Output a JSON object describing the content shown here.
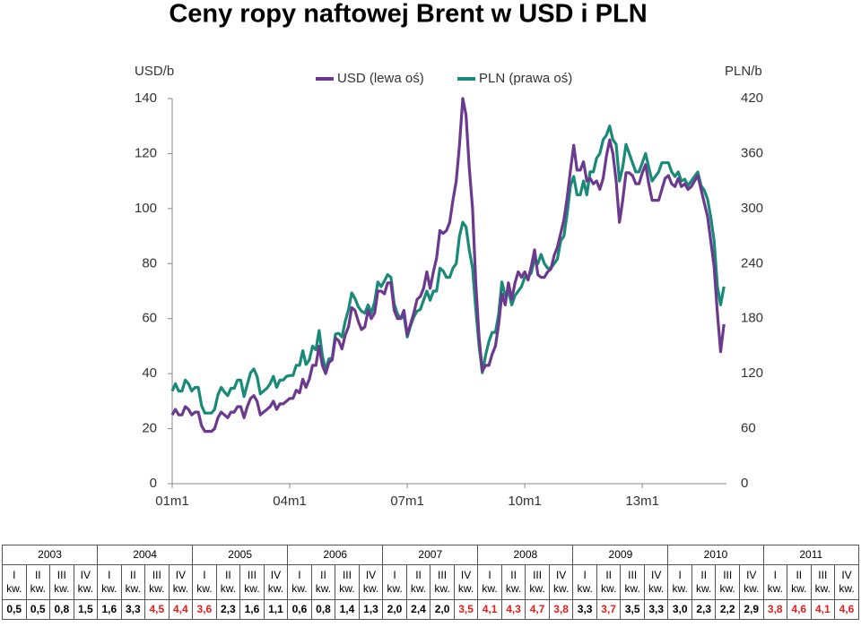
{
  "chart_data": {
    "type": "line",
    "title": "Ceny ropy naftowej Brent w USD i PLN",
    "y_label": "USD/b",
    "y2_label": "PLN/b",
    "categories": [
      "01m1",
      null,
      null,
      null,
      null,
      null,
      null,
      null,
      null,
      null,
      null,
      null,
      null,
      null,
      null,
      null,
      null,
      null,
      null,
      null,
      null,
      null,
      null,
      null,
      null,
      null,
      null,
      null,
      null,
      null,
      null,
      null,
      null,
      null,
      null,
      null,
      "04m1",
      null,
      null,
      null,
      null,
      null,
      null,
      null,
      null,
      null,
      null,
      null,
      null,
      null,
      null,
      null,
      null,
      null,
      null,
      null,
      null,
      null,
      null,
      null,
      null,
      null,
      null,
      null,
      null,
      null,
      null,
      null,
      null,
      null,
      null,
      null,
      "07m1",
      null,
      null,
      null,
      null,
      null,
      null,
      null,
      null,
      null,
      null,
      null,
      null,
      null,
      null,
      null,
      null,
      null,
      null,
      null,
      null,
      null,
      null,
      null,
      null,
      null,
      null,
      null,
      null,
      null,
      null,
      null,
      null,
      null,
      null,
      null,
      "10m1",
      null,
      null,
      null,
      null,
      null,
      null,
      null,
      null,
      null,
      null,
      null,
      null,
      null,
      null,
      null,
      null,
      null,
      null,
      null,
      null,
      null,
      null,
      null,
      null,
      null,
      null,
      null,
      null,
      null,
      null,
      null,
      null,
      null,
      null,
      null,
      "13m1",
      null,
      null,
      null,
      null,
      null,
      null,
      null,
      null,
      null,
      null,
      null,
      null,
      null,
      null,
      null,
      null,
      null,
      null,
      null,
      null,
      null,
      null,
      null,
      null,
      null
    ],
    "series": [
      {
        "name": "USD (lewa oś)",
        "color": "#6b3a8e",
        "values": [
          25,
          27,
          25,
          25,
          28,
          27,
          25,
          26,
          26,
          21,
          19,
          19,
          19,
          20,
          24,
          26,
          25,
          24,
          26,
          26,
          28,
          28,
          24,
          28,
          31,
          32,
          30,
          25,
          26,
          27,
          28,
          30,
          27,
          29,
          29,
          30,
          31,
          31,
          34,
          33,
          38,
          35,
          38,
          43,
          43,
          50,
          43,
          40,
          44,
          45,
          53,
          52,
          49,
          54,
          57,
          64,
          63,
          59,
          56,
          57,
          63,
          60,
          62,
          70,
          70,
          69,
          73,
          73,
          63,
          60,
          60,
          63,
          54,
          58,
          62,
          67,
          68,
          71,
          77,
          71,
          77,
          82,
          92,
          91,
          92,
          95,
          103,
          110,
          123,
          140,
          134,
          115,
          100,
          73,
          53,
          41,
          43,
          43,
          47,
          50,
          58,
          69,
          65,
          73,
          67,
          73,
          77,
          75,
          77,
          74,
          79,
          85,
          76,
          75,
          75,
          77,
          78,
          83,
          86,
          91,
          96,
          104,
          114,
          123,
          114,
          114,
          117,
          110,
          111,
          109,
          110,
          107,
          111,
          119,
          125,
          120,
          110,
          95,
          103,
          113,
          113,
          112,
          109,
          109,
          113,
          116,
          109,
          103,
          103,
          103,
          107,
          111,
          112,
          109,
          108,
          111,
          108,
          109,
          107,
          108,
          110,
          112,
          107,
          102,
          97,
          88,
          79,
          62,
          48,
          58
        ]
      },
      {
        "name": "PLN (prawa oś)",
        "color": "#1a8a78",
        "axis": "y2",
        "values": [
          101,
          109,
          101,
          101,
          113,
          109,
          101,
          105,
          105,
          85,
          77,
          77,
          77,
          81,
          97,
          105,
          100,
          96,
          104,
          104,
          113,
          113,
          95,
          108,
          121,
          125,
          117,
          98,
          101,
          104,
          109,
          117,
          105,
          113,
          113,
          117,
          118,
          118,
          129,
          129,
          145,
          130,
          135,
          150,
          146,
          167,
          140,
          124,
          136,
          137,
          163,
          164,
          160,
          177,
          190,
          208,
          202,
          193,
          188,
          186,
          195,
          186,
          198,
          220,
          215,
          221,
          228,
          225,
          196,
          185,
          180,
          183,
          160,
          172,
          182,
          188,
          190,
          200,
          210,
          200,
          210,
          210,
          235,
          232,
          225,
          225,
          235,
          240,
          270,
          285,
          280,
          255,
          235,
          190,
          150,
          121,
          140,
          155,
          165,
          165,
          185,
          220,
          205,
          210,
          195,
          205,
          210,
          215,
          225,
          225,
          230,
          245,
          240,
          250,
          240,
          235,
          235,
          240,
          245,
          265,
          270,
          295,
          325,
          335,
          315,
          315,
          330,
          315,
          340,
          340,
          355,
          360,
          375,
          380,
          390,
          375,
          370,
          330,
          345,
          370,
          360,
          350,
          340,
          340,
          350,
          360,
          345,
          330,
          335,
          340,
          350,
          350,
          350,
          340,
          335,
          340,
          330,
          332,
          325,
          330,
          335,
          340,
          325,
          320,
          310,
          290,
          265,
          215,
          195,
          215
        ]
      }
    ],
    "ylim": [
      0,
      140
    ],
    "yticks": [
      0,
      20,
      40,
      60,
      80,
      100,
      120,
      140
    ],
    "y2lim": [
      0,
      420
    ],
    "y2ticks": [
      0,
      60,
      120,
      180,
      240,
      300,
      360,
      420
    ],
    "legend": "top"
  },
  "table": {
    "years": [
      "2003",
      "2004",
      "2005",
      "2006",
      "2007",
      "2008",
      "2009",
      "2010",
      "2011"
    ],
    "quarters": [
      "I",
      "II",
      "III",
      "IV"
    ],
    "unit": "kw.",
    "cells": [
      {
        "text": "0,5",
        "highlight": false
      },
      {
        "text": "0,5",
        "highlight": false
      },
      {
        "text": "0,8",
        "highlight": false
      },
      {
        "text": "1,5",
        "highlight": false
      },
      {
        "text": "1,6",
        "highlight": false
      },
      {
        "text": "3,3",
        "highlight": false
      },
      {
        "text": "4,5",
        "highlight": true
      },
      {
        "text": "4,4",
        "highlight": true
      },
      {
        "text": "3,6",
        "highlight": true
      },
      {
        "text": "2,3",
        "highlight": false
      },
      {
        "text": "1,6",
        "highlight": false
      },
      {
        "text": "1,1",
        "highlight": false
      },
      {
        "text": "0,6",
        "highlight": false
      },
      {
        "text": "0,8",
        "highlight": false
      },
      {
        "text": "1,4",
        "highlight": false
      },
      {
        "text": "1,3",
        "highlight": false
      },
      {
        "text": "2,0",
        "highlight": false
      },
      {
        "text": "2,4",
        "highlight": false
      },
      {
        "text": "2,0",
        "highlight": false
      },
      {
        "text": "3,5",
        "highlight": true
      },
      {
        "text": "4,1",
        "highlight": true
      },
      {
        "text": "4,3",
        "highlight": true
      },
      {
        "text": "4,7",
        "highlight": true
      },
      {
        "text": "3,8",
        "highlight": true
      },
      {
        "text": "3,3",
        "highlight": false
      },
      {
        "text": "3,7",
        "highlight": true
      },
      {
        "text": "3,5",
        "highlight": false
      },
      {
        "text": "3,3",
        "highlight": false
      },
      {
        "text": "3,0",
        "highlight": false
      },
      {
        "text": "2,3",
        "highlight": false
      },
      {
        "text": "2,2",
        "highlight": false
      },
      {
        "text": "2,9",
        "highlight": false
      },
      {
        "text": "3,8",
        "highlight": true
      },
      {
        "text": "4,6",
        "highlight": true
      },
      {
        "text": "4,1",
        "highlight": true
      },
      {
        "text": "4,6",
        "highlight": true
      }
    ]
  }
}
